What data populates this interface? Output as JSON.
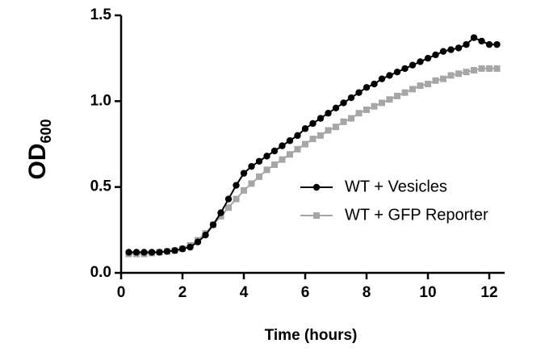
{
  "chart_data": {
    "type": "line",
    "xlabel": "Time (hours)",
    "ylabel": "OD",
    "ylabel_subscript": "600",
    "x": [
      0.25,
      0.5,
      0.75,
      1,
      1.25,
      1.5,
      1.75,
      2,
      2.25,
      2.5,
      2.75,
      3,
      3.25,
      3.5,
      3.75,
      4,
      4.25,
      4.5,
      4.75,
      5,
      5.25,
      5.5,
      5.75,
      6,
      6.25,
      6.5,
      6.75,
      7,
      7.25,
      7.5,
      7.75,
      8,
      8.25,
      8.5,
      8.75,
      9,
      9.25,
      9.5,
      9.75,
      10,
      10.25,
      10.5,
      10.75,
      11,
      11.25,
      11.5,
      11.75,
      12,
      12.25
    ],
    "series": [
      {
        "name": "WT + Vesicles",
        "color": "#000000",
        "marker": "circle",
        "values": [
          0.12,
          0.12,
          0.12,
          0.12,
          0.12,
          0.125,
          0.13,
          0.14,
          0.15,
          0.18,
          0.22,
          0.28,
          0.35,
          0.43,
          0.51,
          0.58,
          0.62,
          0.65,
          0.68,
          0.71,
          0.74,
          0.77,
          0.8,
          0.84,
          0.87,
          0.9,
          0.93,
          0.96,
          0.99,
          1.02,
          1.05,
          1.08,
          1.1,
          1.13,
          1.15,
          1.17,
          1.19,
          1.21,
          1.23,
          1.25,
          1.27,
          1.29,
          1.3,
          1.31,
          1.33,
          1.37,
          1.35,
          1.33,
          1.33
        ]
      },
      {
        "name": "WT + GFP Reporter",
        "color": "#a6a6a6",
        "marker": "square",
        "values": [
          0.11,
          0.11,
          0.11,
          0.115,
          0.12,
          0.125,
          0.13,
          0.14,
          0.16,
          0.19,
          0.23,
          0.28,
          0.33,
          0.38,
          0.43,
          0.48,
          0.52,
          0.56,
          0.6,
          0.63,
          0.66,
          0.69,
          0.72,
          0.75,
          0.78,
          0.8,
          0.83,
          0.85,
          0.88,
          0.9,
          0.93,
          0.95,
          0.97,
          0.99,
          1.01,
          1.03,
          1.05,
          1.07,
          1.09,
          1.1,
          1.12,
          1.13,
          1.15,
          1.16,
          1.17,
          1.18,
          1.19,
          1.19,
          1.19
        ]
      }
    ],
    "xlim": [
      0,
      12.5
    ],
    "xticks": [
      0,
      2,
      4,
      6,
      8,
      10,
      12
    ],
    "ylim": [
      0,
      1.5
    ],
    "yticks": [
      {
        "value": 0,
        "label": "0.0"
      },
      {
        "value": 0.5,
        "label": "0.5"
      },
      {
        "value": 1,
        "label": "1.0"
      },
      {
        "value": 1.5,
        "label": "1.5"
      }
    ],
    "grid": false,
    "legend": "right"
  }
}
